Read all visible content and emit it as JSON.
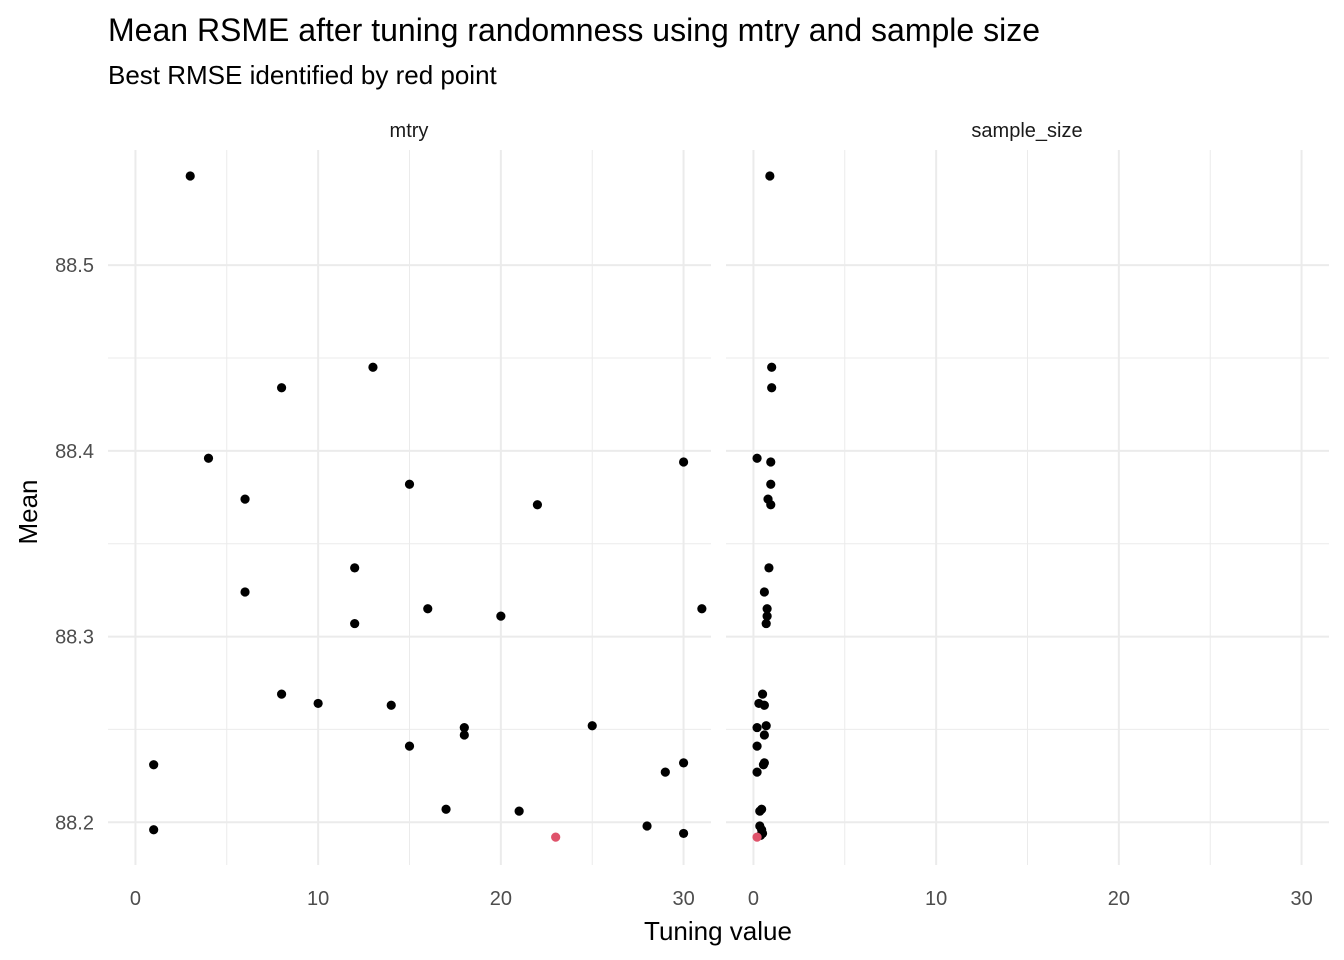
{
  "chart_data": {
    "type": "scatter",
    "title": "Mean RSME after tuning randomness using mtry and sample size",
    "subtitle": "Best RMSE identified by red point",
    "xlabel": "Tuning value",
    "ylabel": "Mean",
    "xlim": [
      -1.5,
      31.5
    ],
    "ylim": [
      88.177,
      88.562
    ],
    "x_ticks": [
      0,
      10,
      20,
      30
    ],
    "y_ticks": [
      88.2,
      88.3,
      88.4,
      88.5
    ],
    "grid": true,
    "point_color": "#000000",
    "best_color": "#DF536B",
    "panels": [
      {
        "name": "mtry",
        "points": [
          {
            "x": 3,
            "y": 88.548
          },
          {
            "x": 13,
            "y": 88.445
          },
          {
            "x": 8,
            "y": 88.434
          },
          {
            "x": 4,
            "y": 88.396
          },
          {
            "x": 30,
            "y": 88.394
          },
          {
            "x": 15,
            "y": 88.382
          },
          {
            "x": 6,
            "y": 88.374
          },
          {
            "x": 22,
            "y": 88.371
          },
          {
            "x": 12,
            "y": 88.337
          },
          {
            "x": 6,
            "y": 88.324
          },
          {
            "x": 16,
            "y": 88.315
          },
          {
            "x": 31,
            "y": 88.315
          },
          {
            "x": 20,
            "y": 88.311
          },
          {
            "x": 12,
            "y": 88.307
          },
          {
            "x": 8,
            "y": 88.269
          },
          {
            "x": 10,
            "y": 88.264
          },
          {
            "x": 14,
            "y": 88.263
          },
          {
            "x": 18,
            "y": 88.251
          },
          {
            "x": 25,
            "y": 88.252
          },
          {
            "x": 18,
            "y": 88.247
          },
          {
            "x": 15,
            "y": 88.241
          },
          {
            "x": 1,
            "y": 88.231
          },
          {
            "x": 30,
            "y": 88.232
          },
          {
            "x": 29,
            "y": 88.227
          },
          {
            "x": 17,
            "y": 88.207
          },
          {
            "x": 21,
            "y": 88.206
          },
          {
            "x": 28,
            "y": 88.198
          },
          {
            "x": 1,
            "y": 88.196
          },
          {
            "x": 30,
            "y": 88.194
          },
          {
            "x": 23,
            "y": 88.192,
            "best": true
          }
        ]
      },
      {
        "name": "sample_size",
        "points": [
          {
            "x": 0.9,
            "y": 88.548
          },
          {
            "x": 1.0,
            "y": 88.445
          },
          {
            "x": 1.0,
            "y": 88.434
          },
          {
            "x": 0.2,
            "y": 88.396
          },
          {
            "x": 0.95,
            "y": 88.394
          },
          {
            "x": 0.95,
            "y": 88.382
          },
          {
            "x": 0.8,
            "y": 88.374
          },
          {
            "x": 0.95,
            "y": 88.371
          },
          {
            "x": 0.85,
            "y": 88.337
          },
          {
            "x": 0.6,
            "y": 88.324
          },
          {
            "x": 0.75,
            "y": 88.315
          },
          {
            "x": 0.75,
            "y": 88.311
          },
          {
            "x": 0.7,
            "y": 88.307
          },
          {
            "x": 0.5,
            "y": 88.269
          },
          {
            "x": 0.3,
            "y": 88.264
          },
          {
            "x": 0.6,
            "y": 88.263
          },
          {
            "x": 0.2,
            "y": 88.251
          },
          {
            "x": 0.7,
            "y": 88.252
          },
          {
            "x": 0.6,
            "y": 88.247
          },
          {
            "x": 0.2,
            "y": 88.241
          },
          {
            "x": 0.55,
            "y": 88.231
          },
          {
            "x": 0.6,
            "y": 88.232
          },
          {
            "x": 0.2,
            "y": 88.227
          },
          {
            "x": 0.45,
            "y": 88.207
          },
          {
            "x": 0.35,
            "y": 88.206
          },
          {
            "x": 0.35,
            "y": 88.198
          },
          {
            "x": 0.45,
            "y": 88.196
          },
          {
            "x": 0.5,
            "y": 88.194
          },
          {
            "x": 0.4,
            "y": 88.193
          },
          {
            "x": 0.2,
            "y": 88.192,
            "best": true
          }
        ]
      }
    ]
  }
}
